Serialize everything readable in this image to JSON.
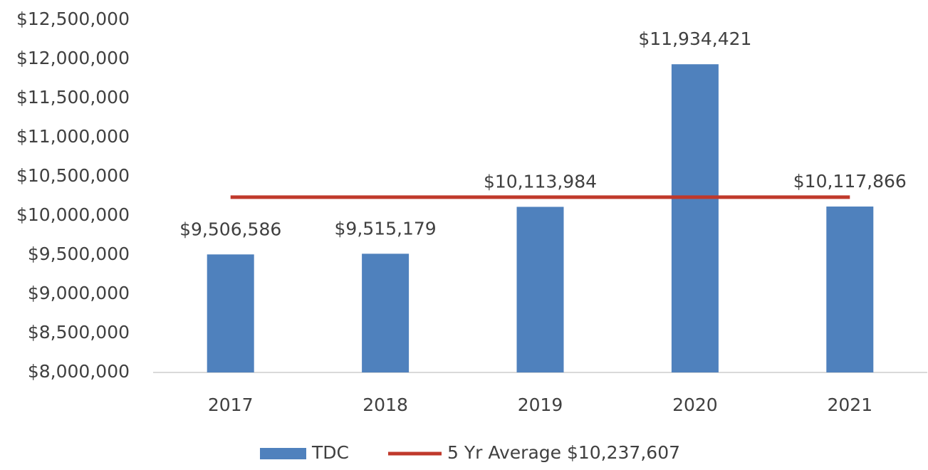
{
  "chart_data": {
    "type": "bar",
    "categories": [
      "2017",
      "2018",
      "2019",
      "2020",
      "2021"
    ],
    "series": [
      {
        "name": "TDC",
        "type": "bar",
        "color": "#4f81bd",
        "values": [
          9506586,
          9515179,
          10113984,
          11934421,
          10117866
        ],
        "value_labels": [
          "$9,506,586",
          "$9,515,179",
          "$10,113,984",
          "$11,934,421",
          "$10,117,866"
        ]
      },
      {
        "name": "5 Yr Average $10,237,607",
        "type": "line",
        "color": "#c0392b",
        "values": [
          10237607,
          10237607,
          10237607,
          10237607,
          10237607
        ]
      }
    ],
    "ylim": [
      8000000,
      12500000
    ],
    "yticks": [
      {
        "value": 8000000,
        "label": "$8,000,000"
      },
      {
        "value": 8500000,
        "label": "$8,500,000"
      },
      {
        "value": 9000000,
        "label": "$9,000,000"
      },
      {
        "value": 9500000,
        "label": "$9,500,000"
      },
      {
        "value": 10000000,
        "label": "$10,000,000"
      },
      {
        "value": 10500000,
        "label": "$10,500,000"
      },
      {
        "value": 11000000,
        "label": "$11,000,000"
      },
      {
        "value": 11500000,
        "label": "$11,500,000"
      },
      {
        "value": 12000000,
        "label": "$12,000,000"
      },
      {
        "value": 12500000,
        "label": "$12,500,000"
      }
    ],
    "grid": false,
    "legend": "bottom"
  }
}
